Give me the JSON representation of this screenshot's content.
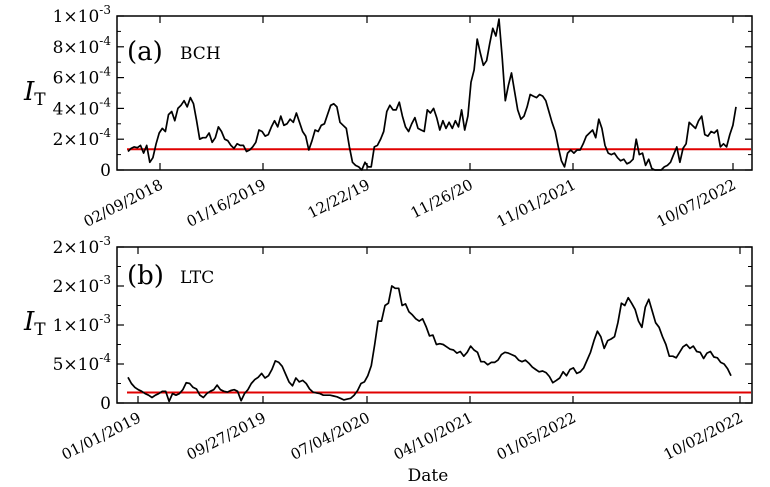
{
  "chart_data": [
    {
      "type": "line",
      "panel_label": "(a)",
      "coin_label": "BCH",
      "ylabel": "I",
      "ylabel_sub": "T",
      "xlabel": "",
      "ylim": [
        0,
        0.001
      ],
      "y_ticks": [
        0,
        0.0002,
        0.0004,
        0.0006,
        0.0008,
        0.001
      ],
      "y_tick_labels": [
        {
          "mant": "0",
          "exp": ""
        },
        {
          "mant": "2×10",
          "exp": "-4"
        },
        {
          "mant": "4×10",
          "exp": "-4"
        },
        {
          "mant": "6×10",
          "exp": "-4"
        },
        {
          "mant": "8×10",
          "exp": "-4"
        },
        {
          "mant": "1×10",
          "exp": "-3"
        }
      ],
      "x_tick_labels": [
        "02/09/2018",
        "01/16/2019",
        "12/22/19",
        "11/26/20",
        "11/01/2021",
        "10/07/2022"
      ],
      "threshold": 0.000135,
      "threshold_color": "#e00000",
      "series_color": "#000000",
      "series": [
        {
          "values": [
            0.00012,
            0.00014,
            0.00015,
            0.000145,
            0.00016,
            0.00011,
            0.00016,
            5e-05,
            8e-05,
            0.00017,
            0.00024,
            0.00027,
            0.00025,
            0.00036,
            0.00038,
            0.00032,
            0.0004,
            0.00042,
            0.00045,
            0.00041,
            0.00047,
            0.00043,
            0.00032,
            0.0002,
            0.00021,
            0.00021,
            0.00024,
            0.00018,
            0.00021,
            0.00028,
            0.00025,
            0.0002,
            0.00019,
            0.00016,
            0.00014,
            0.00017,
            0.00016,
            0.00016,
            0.00012,
            0.00013,
            0.00015,
            0.00018,
            0.00026,
            0.00025,
            0.00022,
            0.00023,
            0.00028,
            0.00032,
            0.00028,
            0.00035,
            0.00029,
            0.0003,
            0.00033,
            0.00031,
            0.00037,
            0.00031,
            0.00025,
            0.00022,
            0.00013,
            0.00019,
            0.00026,
            0.00025,
            0.00029,
            0.0003,
            0.00036,
            0.00042,
            0.00043,
            0.00041,
            0.00031,
            0.00029,
            0.00027,
            0.00015,
            5e-05,
            3e-05,
            2e-05,
            0.0,
            5e-05,
            2e-05,
            2e-05,
            0.00015,
            0.00016,
            0.0002,
            0.00025,
            0.00038,
            0.00042,
            0.00039,
            0.00039,
            0.00044,
            0.00035,
            0.00028,
            0.00025,
            0.0003,
            0.00034,
            0.00027,
            0.00026,
            0.00025,
            0.00039,
            0.00037,
            0.0004,
            0.00034,
            0.00026,
            0.00032,
            0.00027,
            0.00031,
            0.00027,
            0.00032,
            0.00028,
            0.00039,
            0.00026,
            0.00035,
            0.00057,
            0.00065,
            0.00085,
            0.00076,
            0.00068,
            0.00071,
            0.00082,
            0.00092,
            0.00087,
            0.00098,
            0.00073,
            0.00045,
            0.00055,
            0.00063,
            0.00051,
            0.00039,
            0.00033,
            0.00035,
            0.00041,
            0.00049,
            0.00048,
            0.00047,
            0.00049,
            0.00048,
            0.00045,
            0.00038,
            0.00031,
            0.00025,
            0.00015,
            6e-05,
            2e-05,
            0.00011,
            0.00013,
            0.00011,
            0.00013,
            0.00013,
            0.00017,
            0.00022,
            0.00024,
            0.00026,
            0.00021,
            0.00033,
            0.00027,
            0.00016,
            0.00011,
            0.0001,
            0.00011,
            8e-05,
            6e-05,
            7e-05,
            4e-05,
            5e-05,
            7e-05,
            0.0002,
            0.0001,
            0.00011,
            3e-05,
            7e-05,
            1e-05,
            0.0,
            0.0,
            0.0,
            2e-05,
            3e-05,
            5e-05,
            0.0001,
            0.00015,
            5e-05,
            0.00014,
            0.00017,
            0.00031,
            0.00029,
            0.00027,
            0.00032,
            0.00035,
            0.00023,
            0.00022,
            0.00025,
            0.00024,
            0.00026,
            0.00015,
            0.00017,
            0.00015,
            0.00023,
            0.00029,
            0.00041
          ]
        }
      ]
    },
    {
      "type": "line",
      "panel_label": "(b)",
      "coin_label": "LTC",
      "ylabel": "I",
      "ylabel_sub": "T",
      "xlabel": "Date",
      "ylim": [
        0,
        0.002
      ],
      "y_ticks": [
        0,
        0.0005,
        0.001,
        0.0015,
        0.002
      ],
      "y_tick_labels": [
        {
          "mant": "0",
          "exp": ""
        },
        {
          "mant": "5×10",
          "exp": "-4"
        },
        {
          "mant": "1×10",
          "exp": "-3"
        },
        {
          "mant": "2×10",
          "exp": "-3"
        },
        {
          "mant": "2×10",
          "exp": "-3"
        }
      ],
      "x_tick_labels": [
        "01/01/2019",
        "09/27/2019",
        "07/04/2020",
        "04/10/2021",
        "01/05/2022",
        "10/02/2022"
      ],
      "threshold": 0.000135,
      "threshold_color": "#e00000",
      "series_color": "#000000",
      "series": [
        {
          "values": [
            0.00033,
            0.00025,
            0.0002,
            0.00017,
            0.00015,
            0.00012,
            0.0001,
            7e-05,
            0.0001,
            0.00012,
            0.00015,
            0.00015,
            2e-05,
            0.00012,
            0.0001,
            0.00012,
            0.00017,
            0.00026,
            0.00025,
            0.0002,
            0.00018,
            0.0001,
            7e-05,
            0.00012,
            0.00015,
            0.00017,
            0.00023,
            0.00017,
            0.00015,
            0.00014,
            0.00016,
            0.00017,
            0.00015,
            3e-05,
            0.00012,
            0.00017,
            0.00025,
            0.0003,
            0.00033,
            0.00038,
            0.00032,
            0.00035,
            0.00043,
            0.00054,
            0.00052,
            0.00047,
            0.00037,
            0.00027,
            0.00022,
            0.00032,
            0.00027,
            0.00029,
            0.00025,
            0.00018,
            0.00014,
            0.00013,
            0.00012,
            0.0001,
            0.0001,
            0.0001,
            9e-05,
            8e-05,
            6e-05,
            4e-05,
            5e-05,
            6e-05,
            0.0001,
            0.00016,
            0.00025,
            0.00027,
            0.00035,
            0.00048,
            0.00075,
            0.00105,
            0.00105,
            0.00125,
            0.00128,
            0.0015,
            0.00147,
            0.00147,
            0.00125,
            0.00127,
            0.00117,
            0.00113,
            0.00108,
            0.00105,
            0.00108,
            0.00098,
            0.00086,
            0.00087,
            0.00075,
            0.00076,
            0.00075,
            0.00072,
            0.00069,
            0.00068,
            0.00064,
            0.00066,
            0.0006,
            0.00065,
            0.00073,
            0.00068,
            0.00065,
            0.00053,
            0.00053,
            0.00049,
            0.00052,
            0.00052,
            0.00055,
            0.00062,
            0.00065,
            0.00064,
            0.00062,
            0.0006,
            0.00055,
            0.00053,
            0.00055,
            0.00051,
            0.00046,
            0.00043,
            0.0004,
            0.00041,
            0.00039,
            0.00034,
            0.00026,
            0.00029,
            0.00032,
            0.0004,
            0.00035,
            0.00043,
            0.00045,
            0.00038,
            0.0004,
            0.00045,
            0.00055,
            0.00065,
            0.0008,
            0.00092,
            0.00085,
            0.0007,
            0.0008,
            0.00082,
            0.00085,
            0.00103,
            0.00128,
            0.00125,
            0.00135,
            0.00128,
            0.0012,
            0.00105,
            0.00097,
            0.00123,
            0.00133,
            0.00118,
            0.00103,
            0.00097,
            0.00085,
            0.00075,
            0.0006,
            0.0006,
            0.00058,
            0.00065,
            0.00072,
            0.00075,
            0.0007,
            0.00073,
            0.00066,
            0.00065,
            0.00057,
            0.00064,
            0.00066,
            0.00059,
            0.00058,
            0.00052,
            0.0005,
            0.00044,
            0.00035
          ]
        }
      ]
    }
  ]
}
